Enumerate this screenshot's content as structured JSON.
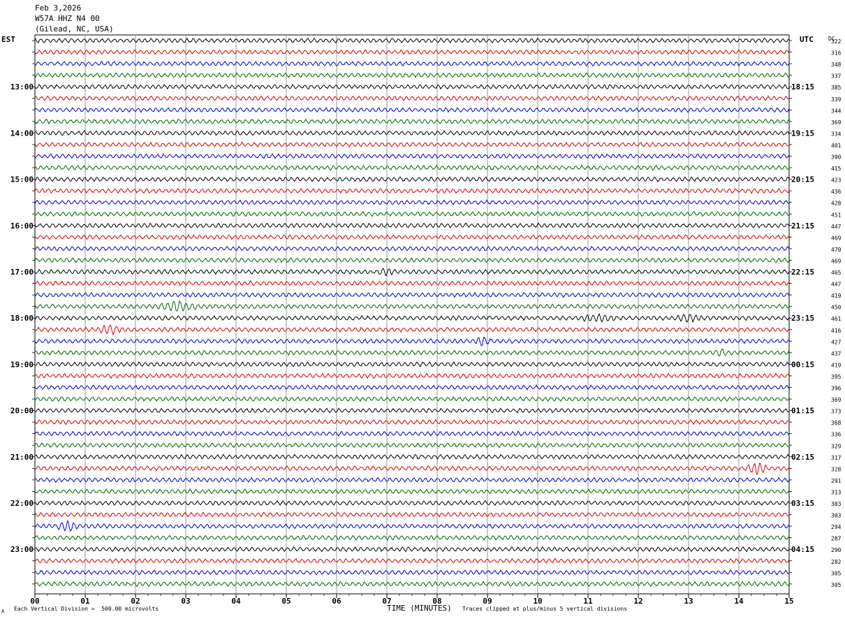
{
  "header": {
    "date": "Feb 3,2026",
    "station": "W57A HHZ N4 00",
    "location": "(Gilead, NC, USA)"
  },
  "left_zone": "EST",
  "right_zone": "UTC",
  "dc_label": "DC",
  "footer": {
    "scale": "Each Vertical Division =  500.00 microvolts",
    "xlabel": "TIME (MINUTES)",
    "clip": "Traces clipped at plus/minus 5 vertical divisions",
    "corner_mark": "A"
  },
  "chart_data": {
    "type": "line",
    "title": "",
    "xlabel": "TIME (MINUTES)",
    "ylabel": "",
    "xlim": [
      0,
      15
    ],
    "x_ticks": [
      "00",
      "01",
      "02",
      "03",
      "04",
      "05",
      "06",
      "07",
      "08",
      "09",
      "10",
      "11",
      "12",
      "13",
      "14",
      "15"
    ],
    "rows_per_hour": 4,
    "trace_colors": [
      "#000000",
      "#dd0000",
      "#0000cc",
      "#006600"
    ],
    "left_hour_labels": [
      "13:00",
      "14:00",
      "15:00",
      "16:00",
      "17:00",
      "18:00",
      "19:00",
      "20:00",
      "21:00",
      "22:00",
      "23:00"
    ],
    "right_hour_labels": [
      "18:15",
      "19:15",
      "20:15",
      "21:15",
      "22:15",
      "23:15",
      "00:15",
      "01:15",
      "02:15",
      "03:15",
      "04:15"
    ],
    "dc_offsets": [
      322,
      316,
      348,
      337,
      385,
      339,
      344,
      369,
      334,
      401,
      390,
      415,
      423,
      436,
      428,
      451,
      447,
      469,
      470,
      469,
      465,
      447,
      419,
      450,
      461,
      416,
      427,
      437,
      419,
      395,
      396,
      369,
      373,
      368,
      336,
      329,
      317,
      328,
      291,
      313,
      303,
      303,
      294,
      287,
      290,
      282,
      305,
      305
    ],
    "events": [
      {
        "row": 23,
        "start_min": 2.4,
        "end_min": 3.3,
        "amp": 2.2
      },
      {
        "row": 25,
        "start_min": 1.2,
        "end_min": 1.8,
        "amp": 1.8
      },
      {
        "row": 26,
        "start_min": 8.7,
        "end_min": 9.1,
        "amp": 2.0
      },
      {
        "row": 27,
        "start_min": 13.5,
        "end_min": 13.8,
        "amp": 1.8
      },
      {
        "row": 24,
        "start_min": 10.8,
        "end_min": 11.6,
        "amp": 1.5
      },
      {
        "row": 24,
        "start_min": 12.7,
        "end_min": 13.3,
        "amp": 1.6
      },
      {
        "row": 37,
        "start_min": 14.1,
        "end_min": 14.6,
        "amp": 2.6
      },
      {
        "row": 42,
        "start_min": 0.4,
        "end_min": 0.9,
        "amp": 2.2
      },
      {
        "row": 20,
        "start_min": 6.8,
        "end_min": 7.2,
        "amp": 1.4
      }
    ]
  }
}
